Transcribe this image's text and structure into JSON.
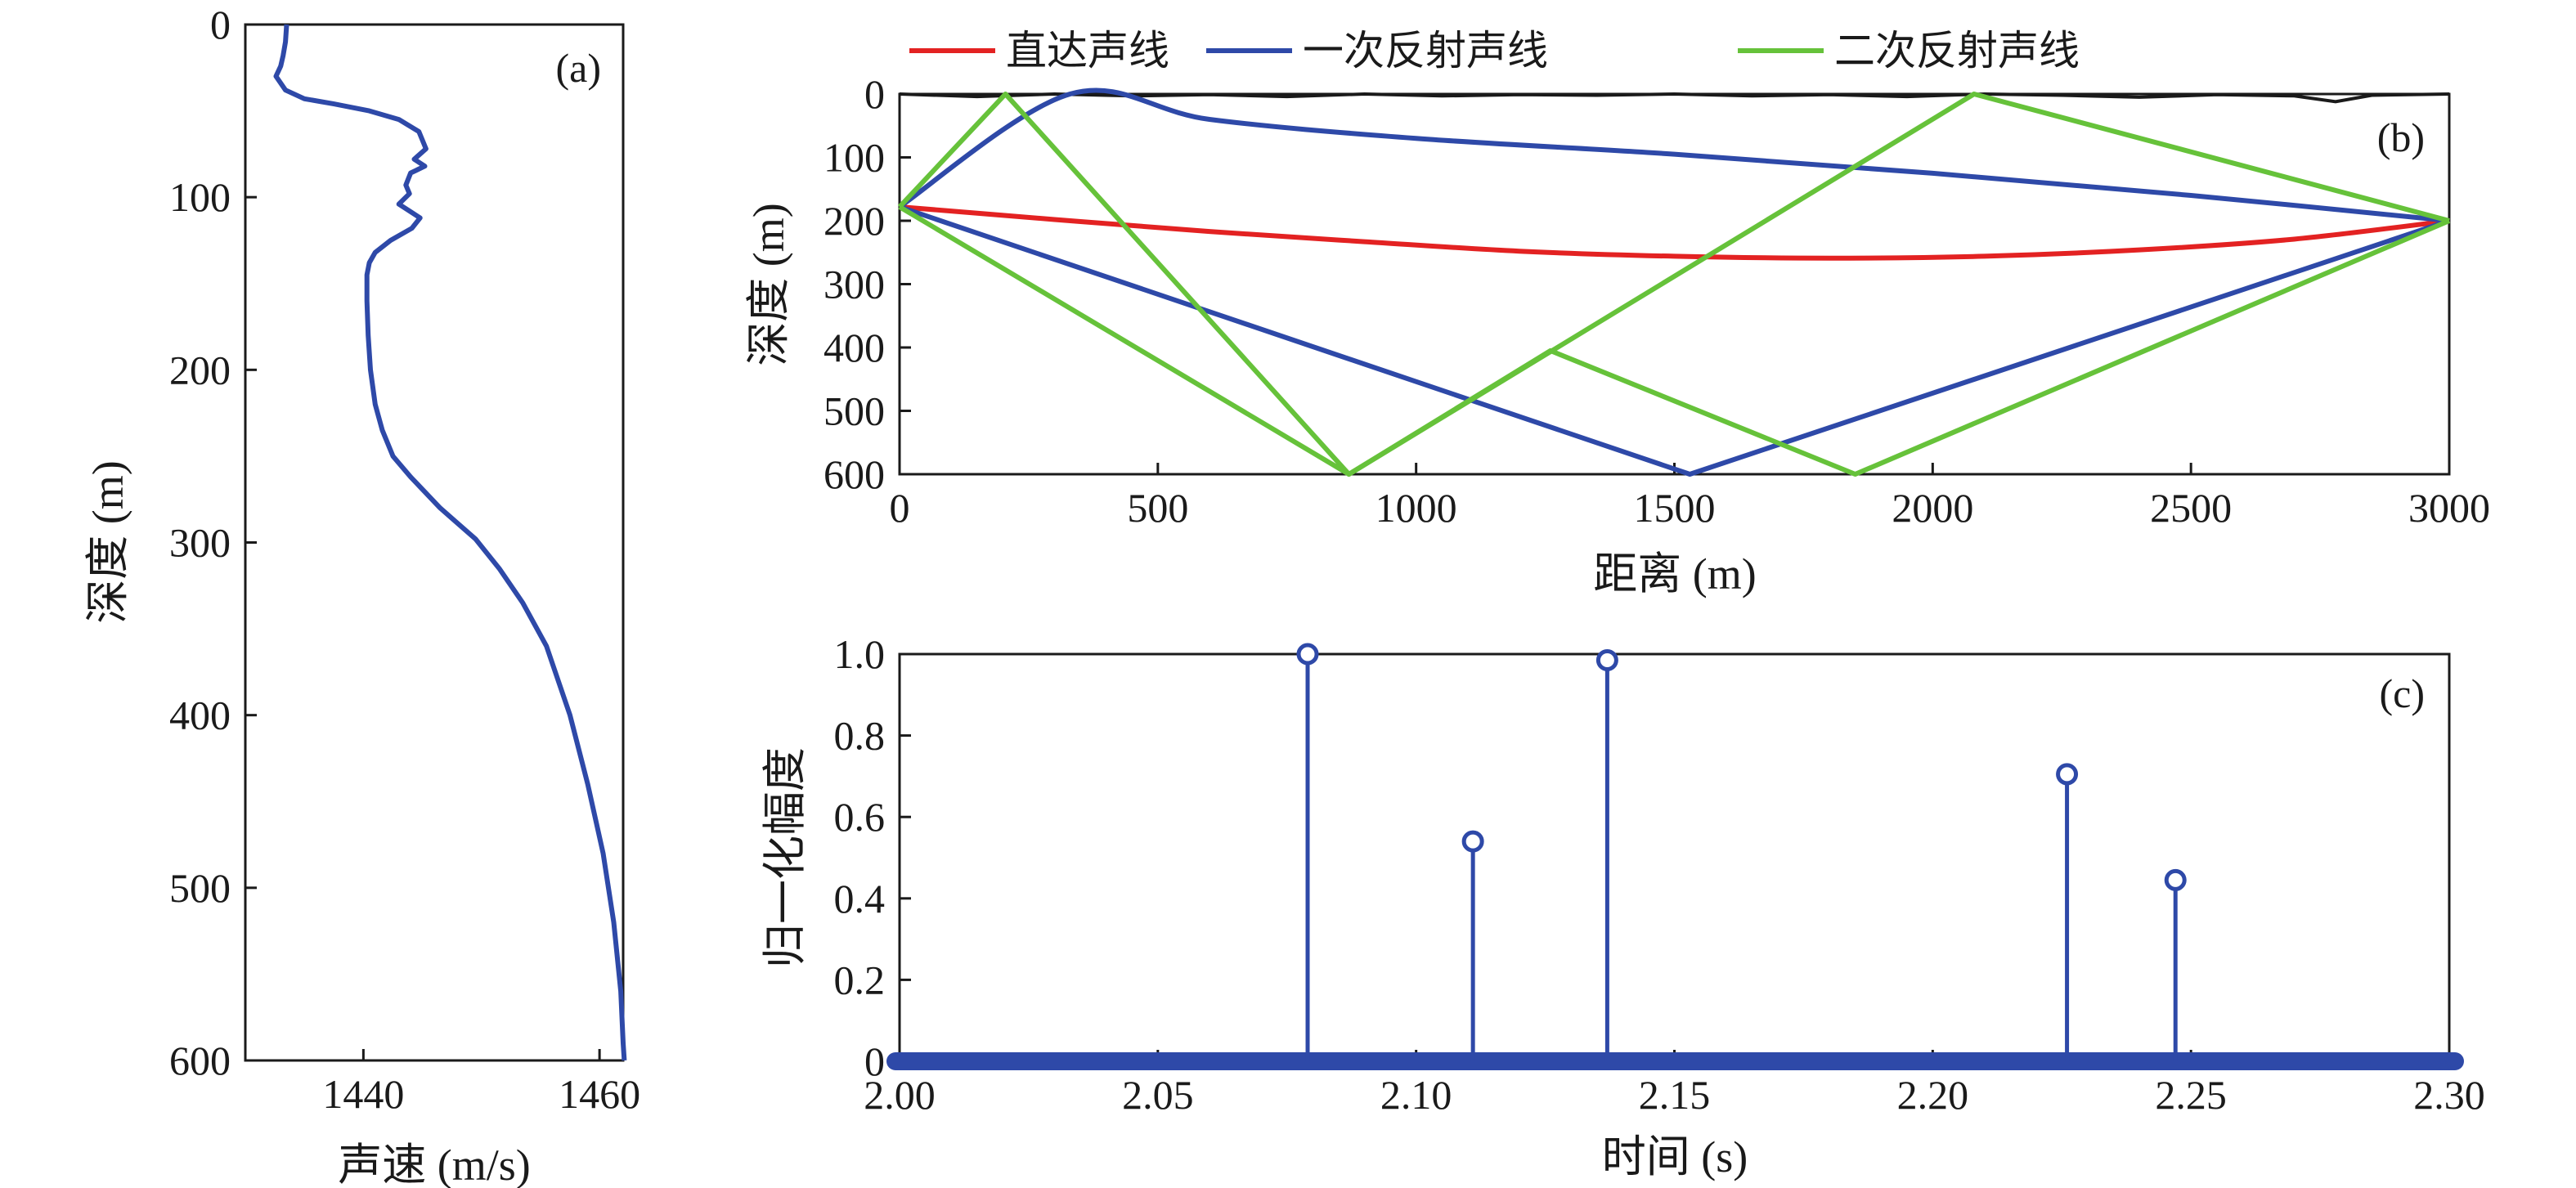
{
  "chart_data": [
    {
      "panel": "(a)",
      "type": "line",
      "xlabel": "声速 (m/s)",
      "ylabel": "深度 (m)",
      "xlim": [
        1430,
        1462
      ],
      "ylim": [
        600,
        0
      ],
      "xticks": [
        1440,
        1460
      ],
      "yticks": [
        0,
        100,
        200,
        300,
        400,
        500,
        600
      ],
      "grid": false,
      "series": [
        {
          "color": "#2e49a8",
          "x": [
            1433.5,
            1433.4,
            1433.2,
            1433.0,
            1432.6,
            1433.4,
            1435.0,
            1437.5,
            1440.5,
            1443.0,
            1444.7,
            1445.3,
            1444.3,
            1445.2,
            1444.0,
            1443.6,
            1443.9,
            1443.0,
            1444.8,
            1444.1,
            1442.3,
            1441.0,
            1440.5,
            1440.3,
            1440.3,
            1440.4,
            1440.6,
            1441.0,
            1441.6,
            1442.5,
            1444.0,
            1446.5,
            1449.5,
            1451.5,
            1453.5,
            1455.5,
            1457.5,
            1459.0,
            1460.3,
            1461.2,
            1461.8,
            1462.0,
            1462.1
          ],
          "y": [
            0,
            10,
            18,
            24,
            30,
            38,
            43,
            46,
            50,
            55,
            62,
            72,
            78,
            82,
            86,
            93,
            98,
            104,
            112,
            118,
            125,
            132,
            138,
            145,
            160,
            180,
            200,
            220,
            235,
            250,
            262,
            280,
            298,
            315,
            335,
            360,
            400,
            440,
            480,
            520,
            560,
            590,
            605
          ]
        }
      ]
    },
    {
      "panel": "(b)",
      "type": "line",
      "xlabel": "距离 (m)",
      "ylabel": "深度 (m)",
      "xlim": [
        0,
        3000
      ],
      "ylim": [
        600,
        0
      ],
      "xticks": [
        0,
        500,
        1000,
        1500,
        2000,
        2500,
        3000
      ],
      "yticks": [
        0,
        100,
        200,
        300,
        400,
        500,
        600
      ],
      "legend_position": "top",
      "grid": false,
      "series": [
        {
          "name": "直达声线",
          "color": "#e32222",
          "segments": [
            {
              "x": [
                0,
                300,
                600,
                900,
                1200,
                1500,
                1800,
                2100,
                2400,
                2700,
                3000
              ],
              "y": [
                178,
                198,
                217,
                233,
                248,
                256,
                259,
                256,
                246,
                229,
                200
              ]
            }
          ]
        },
        {
          "name": "一次反射声线",
          "color": "#2e49a8",
          "segments": [
            {
              "x": [
                0,
                330,
                600,
                1000,
                1500,
                2000,
                2500,
                3000
              ],
              "y": [
                178,
                0,
                40,
                70,
                95,
                125,
                160,
                200
              ]
            },
            {
              "x": [
                0,
                1530,
                3000
              ],
              "y": [
                178,
                600,
                200
              ]
            }
          ]
        },
        {
          "name": "二次反射声线",
          "color": "#66c23a",
          "segments": [
            {
              "x": [
                0,
                205,
                870,
                2080,
                3000
              ],
              "y": [
                178,
                0,
                600,
                0,
                200
              ]
            },
            {
              "x": [
                0,
                870,
                1260,
                1850,
                3000
              ],
              "y": [
                178,
                600,
                405,
                600,
                200
              ]
            }
          ]
        }
      ],
      "surface": {
        "color": "#1a1a1a",
        "x": [
          0,
          150,
          300,
          450,
          600,
          750,
          900,
          1050,
          1200,
          1350,
          1500,
          1650,
          1800,
          1950,
          2100,
          2250,
          2400,
          2550,
          2700,
          2780,
          2850,
          3000
        ],
        "y": [
          0,
          4,
          0,
          3,
          1,
          4,
          0,
          3,
          1,
          2,
          0,
          3,
          1,
          4,
          0,
          2,
          5,
          1,
          3,
          12,
          2,
          0
        ]
      }
    },
    {
      "panel": "(c)",
      "type": "stem",
      "xlabel": "时间 (s)",
      "ylabel": "归一化幅度",
      "xlim": [
        2.0,
        2.3
      ],
      "ylim": [
        0,
        1.0
      ],
      "xticks": [
        "2.00",
        "2.05",
        "2.10",
        "2.15",
        "2.20",
        "2.25",
        "2.30"
      ],
      "yticks": [
        "0",
        "0.2",
        "0.4",
        "0.6",
        "0.8",
        "1.0"
      ],
      "grid": false,
      "series": [
        {
          "color": "#2e49a8",
          "x": [
            2.079,
            2.111,
            2.137,
            2.226,
            2.247
          ],
          "values": [
            1.0,
            0.54,
            0.985,
            0.705,
            0.445
          ]
        }
      ]
    }
  ]
}
